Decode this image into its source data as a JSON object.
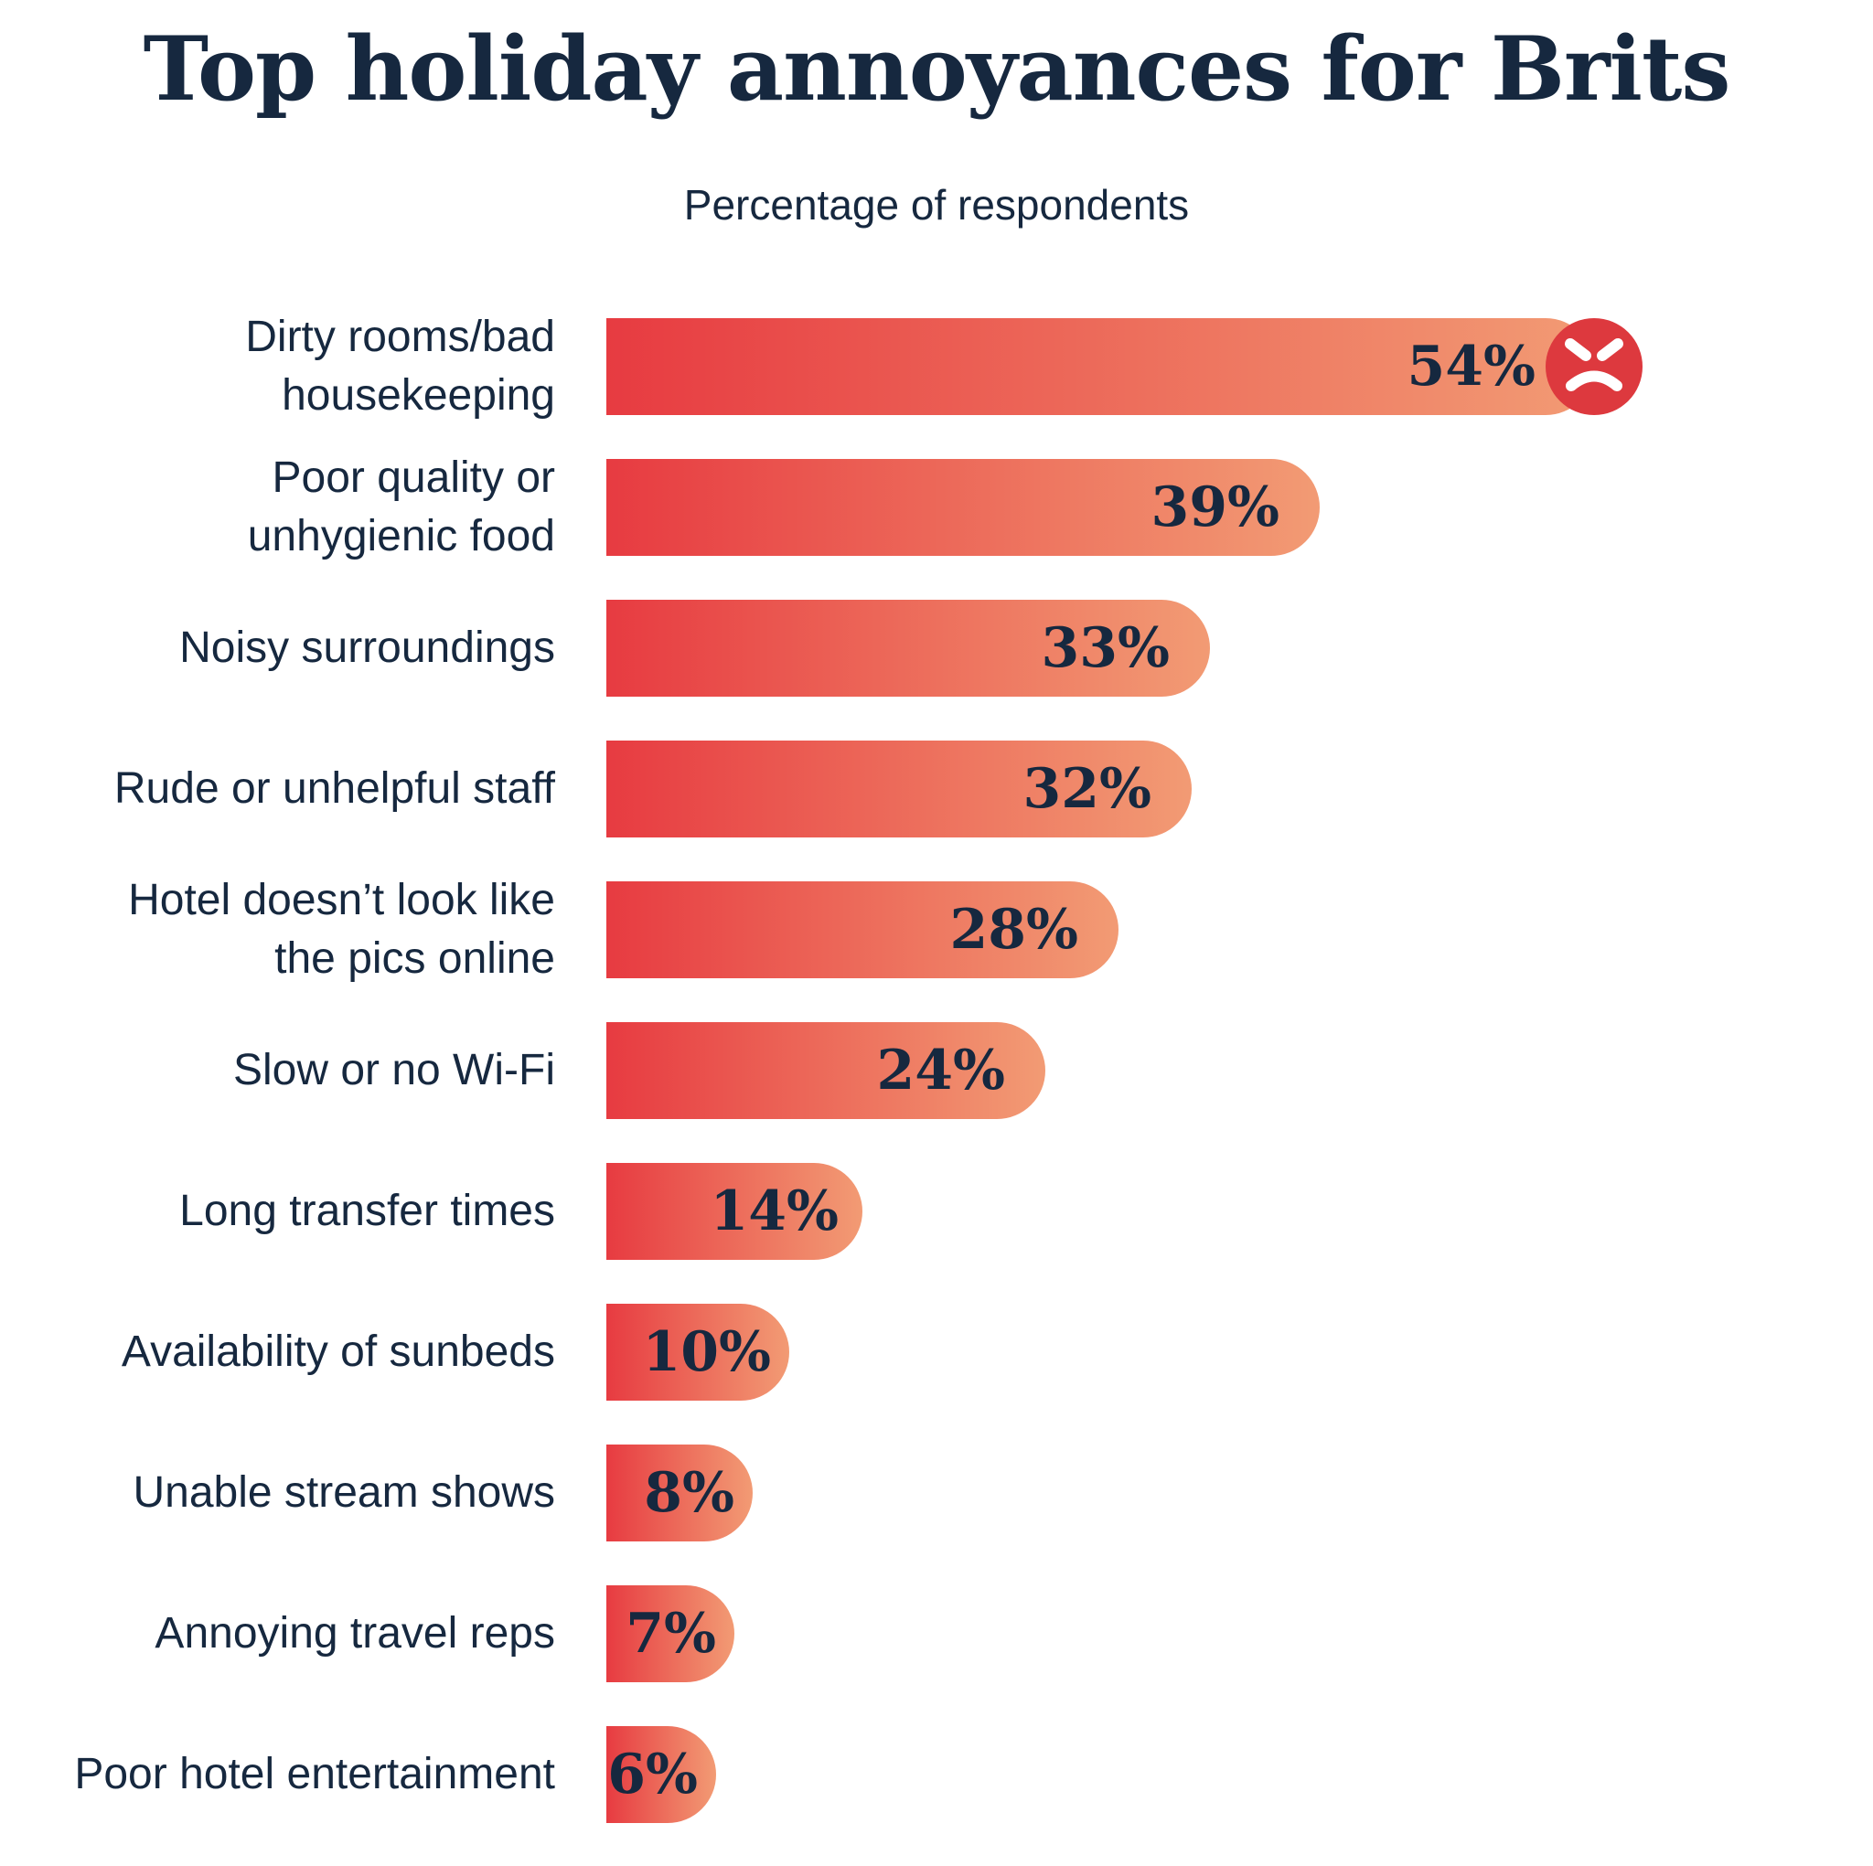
{
  "title": "Top holiday annoyances for Brits",
  "subtitle": "Percentage of respondents",
  "colors": {
    "text_navy": "#16283f",
    "bar_gradient_start": "#e73b41",
    "bar_gradient_end": "#f29b74",
    "angry_face_red": "#dd393e",
    "background": "#ffffff"
  },
  "chart_data": {
    "type": "bar",
    "orientation": "horizontal",
    "title": "Top holiday annoyances for Brits",
    "subtitle": "Percentage of respondents",
    "unit": "%",
    "xlim": [
      0,
      54
    ],
    "grid": false,
    "legend": false,
    "categories": [
      "Dirty rooms/bad housekeeping",
      "Poor quality or unhygienic food",
      "Noisy surroundings",
      "Rude or unhelpful staff",
      "Hotel doesn’t look like the pics online",
      "Slow or no Wi-Fi",
      "Long transfer times",
      "Availability of sunbeds",
      "Unable stream shows",
      "Annoying travel reps",
      "Poor hotel entertainment"
    ],
    "values": [
      54,
      39,
      33,
      32,
      28,
      24,
      14,
      10,
      8,
      7,
      6
    ],
    "bars": [
      {
        "label_lines": [
          "Dirty rooms/bad",
          "housekeeping"
        ],
        "value": 54,
        "value_label": "54%",
        "icon": "angry-face-icon"
      },
      {
        "label_lines": [
          "Poor quality or",
          "unhygienic food"
        ],
        "value": 39,
        "value_label": "39%",
        "icon": null
      },
      {
        "label_lines": [
          "Noisy surroundings"
        ],
        "value": 33,
        "value_label": "33%",
        "icon": null
      },
      {
        "label_lines": [
          "Rude or unhelpful staff"
        ],
        "value": 32,
        "value_label": "32%",
        "icon": null
      },
      {
        "label_lines": [
          "Hotel doesn’t look like",
          "the pics online"
        ],
        "value": 28,
        "value_label": "28%",
        "icon": null
      },
      {
        "label_lines": [
          "Slow or no Wi-Fi"
        ],
        "value": 24,
        "value_label": "24%",
        "icon": null
      },
      {
        "label_lines": [
          "Long transfer times"
        ],
        "value": 14,
        "value_label": "14%",
        "icon": null
      },
      {
        "label_lines": [
          "Availability of sunbeds"
        ],
        "value": 10,
        "value_label": "10%",
        "icon": null
      },
      {
        "label_lines": [
          "Unable stream shows"
        ],
        "value": 8,
        "value_label": "8%",
        "icon": null
      },
      {
        "label_lines": [
          "Annoying travel reps"
        ],
        "value": 7,
        "value_label": "7%",
        "icon": null
      },
      {
        "label_lines": [
          "Poor hotel entertainment"
        ],
        "value": 6,
        "value_label": "6%",
        "icon": null
      }
    ]
  }
}
